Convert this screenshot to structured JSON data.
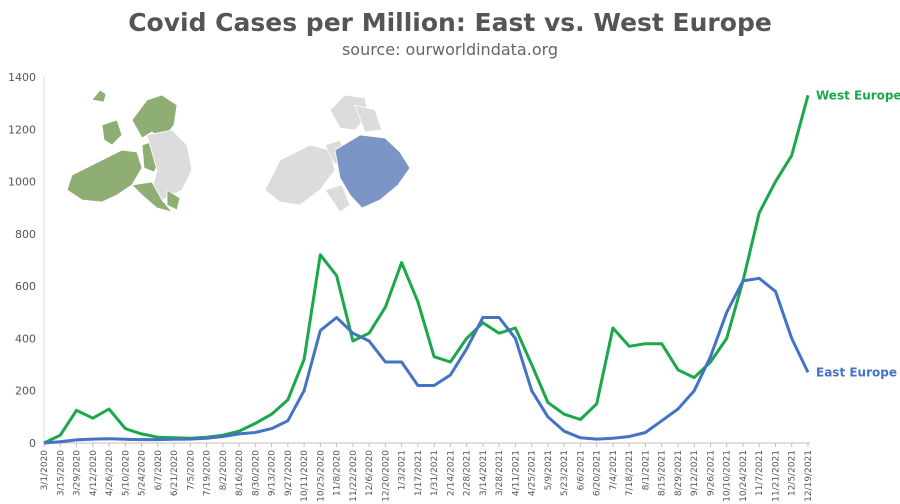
{
  "title": "Covid Cases per Million: East vs. West Europe",
  "subtitle": "source: ourworldindata.org",
  "colors": {
    "west": "#1aa84b",
    "east": "#4472c4",
    "west_map": "#8fae74",
    "east_map": "#7b96c6",
    "other_map": "#dcdcdc"
  },
  "chart_data": {
    "type": "line",
    "xlabel": "",
    "ylabel": "",
    "ylim": [
      0,
      1400
    ],
    "yticks": [
      0,
      200,
      400,
      600,
      800,
      1000,
      1200,
      1400
    ],
    "grid": false,
    "x_tick_labels": [
      "3/1/2020",
      "3/15/2020",
      "3/29/2020",
      "4/12/2020",
      "4/26/2020",
      "5/10/2020",
      "5/24/2020",
      "6/7/2020",
      "6/21/2020",
      "7/5/2020",
      "7/19/2020",
      "8/2/2020",
      "8/16/2020",
      "8/30/2020",
      "9/13/2020",
      "9/27/2020",
      "10/11/2020",
      "10/25/2020",
      "11/8/2020",
      "11/22/2020",
      "12/6/2020",
      "12/20/2020",
      "1/3/2021",
      "1/17/2021",
      "1/31/2021",
      "2/14/2021",
      "2/28/2021",
      "3/14/2021",
      "3/28/2021",
      "4/11/2021",
      "4/25/2021",
      "5/9/2021",
      "5/23/2021",
      "6/6/2021",
      "6/20/2021",
      "7/4/2021",
      "7/18/2021",
      "8/1/2021",
      "8/15/2021",
      "8/29/2021",
      "9/12/2021",
      "9/26/2021",
      "10/10/2021",
      "10/24/2021",
      "11/7/2021",
      "11/21/2021",
      "12/5/2021",
      "12/19/2021"
    ],
    "series": [
      {
        "name": "West Europe",
        "color": "#1aa84b",
        "values": [
          0,
          30,
          125,
          95,
          130,
          55,
          35,
          22,
          20,
          18,
          22,
          30,
          45,
          75,
          110,
          165,
          320,
          720,
          640,
          390,
          420,
          520,
          690,
          540,
          330,
          310,
          400,
          460,
          420,
          440,
          300,
          155,
          110,
          90,
          150,
          440,
          370,
          380,
          380,
          280,
          250,
          310,
          400,
          620,
          880,
          1000,
          1100,
          1330
        ]
      },
      {
        "name": "East Europe",
        "color": "#4472c4",
        "values": [
          0,
          5,
          12,
          15,
          16,
          14,
          13,
          13,
          14,
          15,
          18,
          25,
          35,
          40,
          55,
          85,
          200,
          430,
          480,
          420,
          390,
          310,
          310,
          220,
          220,
          260,
          360,
          480,
          480,
          400,
          200,
          100,
          45,
          20,
          15,
          18,
          25,
          40,
          85,
          130,
          200,
          330,
          500,
          620,
          630,
          580,
          400,
          270
        ]
      }
    ]
  }
}
